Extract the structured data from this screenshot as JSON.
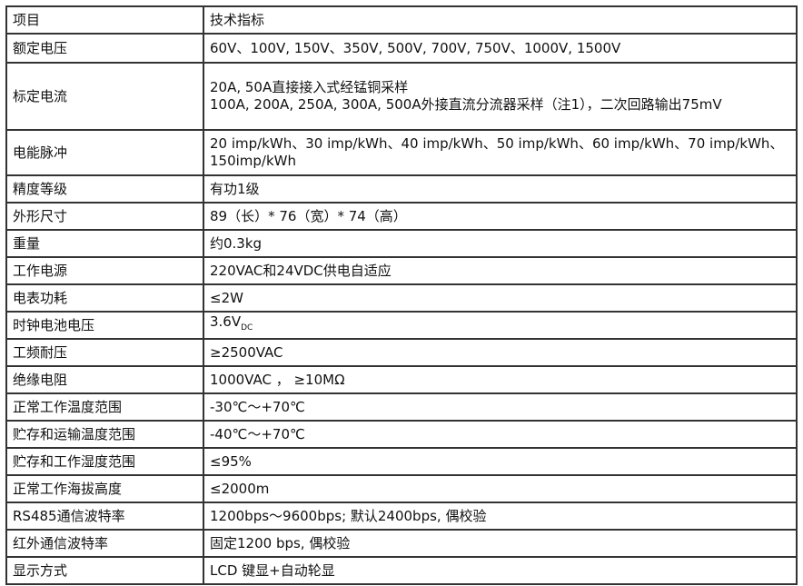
{
  "header": {
    "item": "项目",
    "spec": "技术指标"
  },
  "rows": [
    {
      "item": "额定电压",
      "lines": [
        "60V、100V, 150V、350V, 500V, 700V, 750V、1000V, 1500V"
      ]
    },
    {
      "item": "标定电流",
      "lines": [
        "20A, 50A直接接入式经锰铜采样",
        "100A, 200A, 250A, 300A, 500A外接直流分流器采样（注1），二次回路输出75mV"
      ]
    },
    {
      "item": "电能脉冲",
      "lines": [
        "20 imp/kWh、30 imp/kWh、40 imp/kWh、50 imp/kWh、60 imp/kWh、70 imp/kWh、 150imp/kWh"
      ]
    },
    {
      "item": "精度等级",
      "lines": [
        "有功1级"
      ]
    },
    {
      "item": "外形尺寸",
      "lines": [
        "89（长）* 76（宽）* 74（高）"
      ]
    },
    {
      "item": "重量",
      "lines": [
        "约0.3kg"
      ]
    },
    {
      "item": "工作电源",
      "lines": [
        "220VAC和24VDC供电自适应"
      ]
    },
    {
      "item": "电表功耗",
      "lines": [
        "≤2W"
      ]
    },
    {
      "item": "时钟电池电压",
      "lines": [
        "3.6V"
      ],
      "sub": "DC"
    },
    {
      "item": "工频耐压",
      "lines": [
        "≥2500VAC"
      ]
    },
    {
      "item": "绝缘电阻",
      "lines": [
        "1000VAC ，  ≥10MΩ"
      ]
    },
    {
      "item": "正常工作温度范围",
      "lines": [
        "-30℃～+70℃"
      ]
    },
    {
      "item": "贮存和运输温度范围",
      "lines": [
        "-40℃～+70℃"
      ]
    },
    {
      "item": "贮存和工作湿度范围",
      "lines": [
        "≤95%"
      ]
    },
    {
      "item": "正常工作海拔高度",
      "lines": [
        "≤2000m"
      ]
    },
    {
      "item": "RS485通信波特率",
      "lines": [
        "1200bps～9600bps; 默认2400bps, 偶校验"
      ]
    },
    {
      "item": "红外通信波特率",
      "lines": [
        "固定1200 bps, 偶校验"
      ]
    },
    {
      "item": "显示方式",
      "lines": [
        "LCD 键显+自动轮显"
      ]
    }
  ]
}
